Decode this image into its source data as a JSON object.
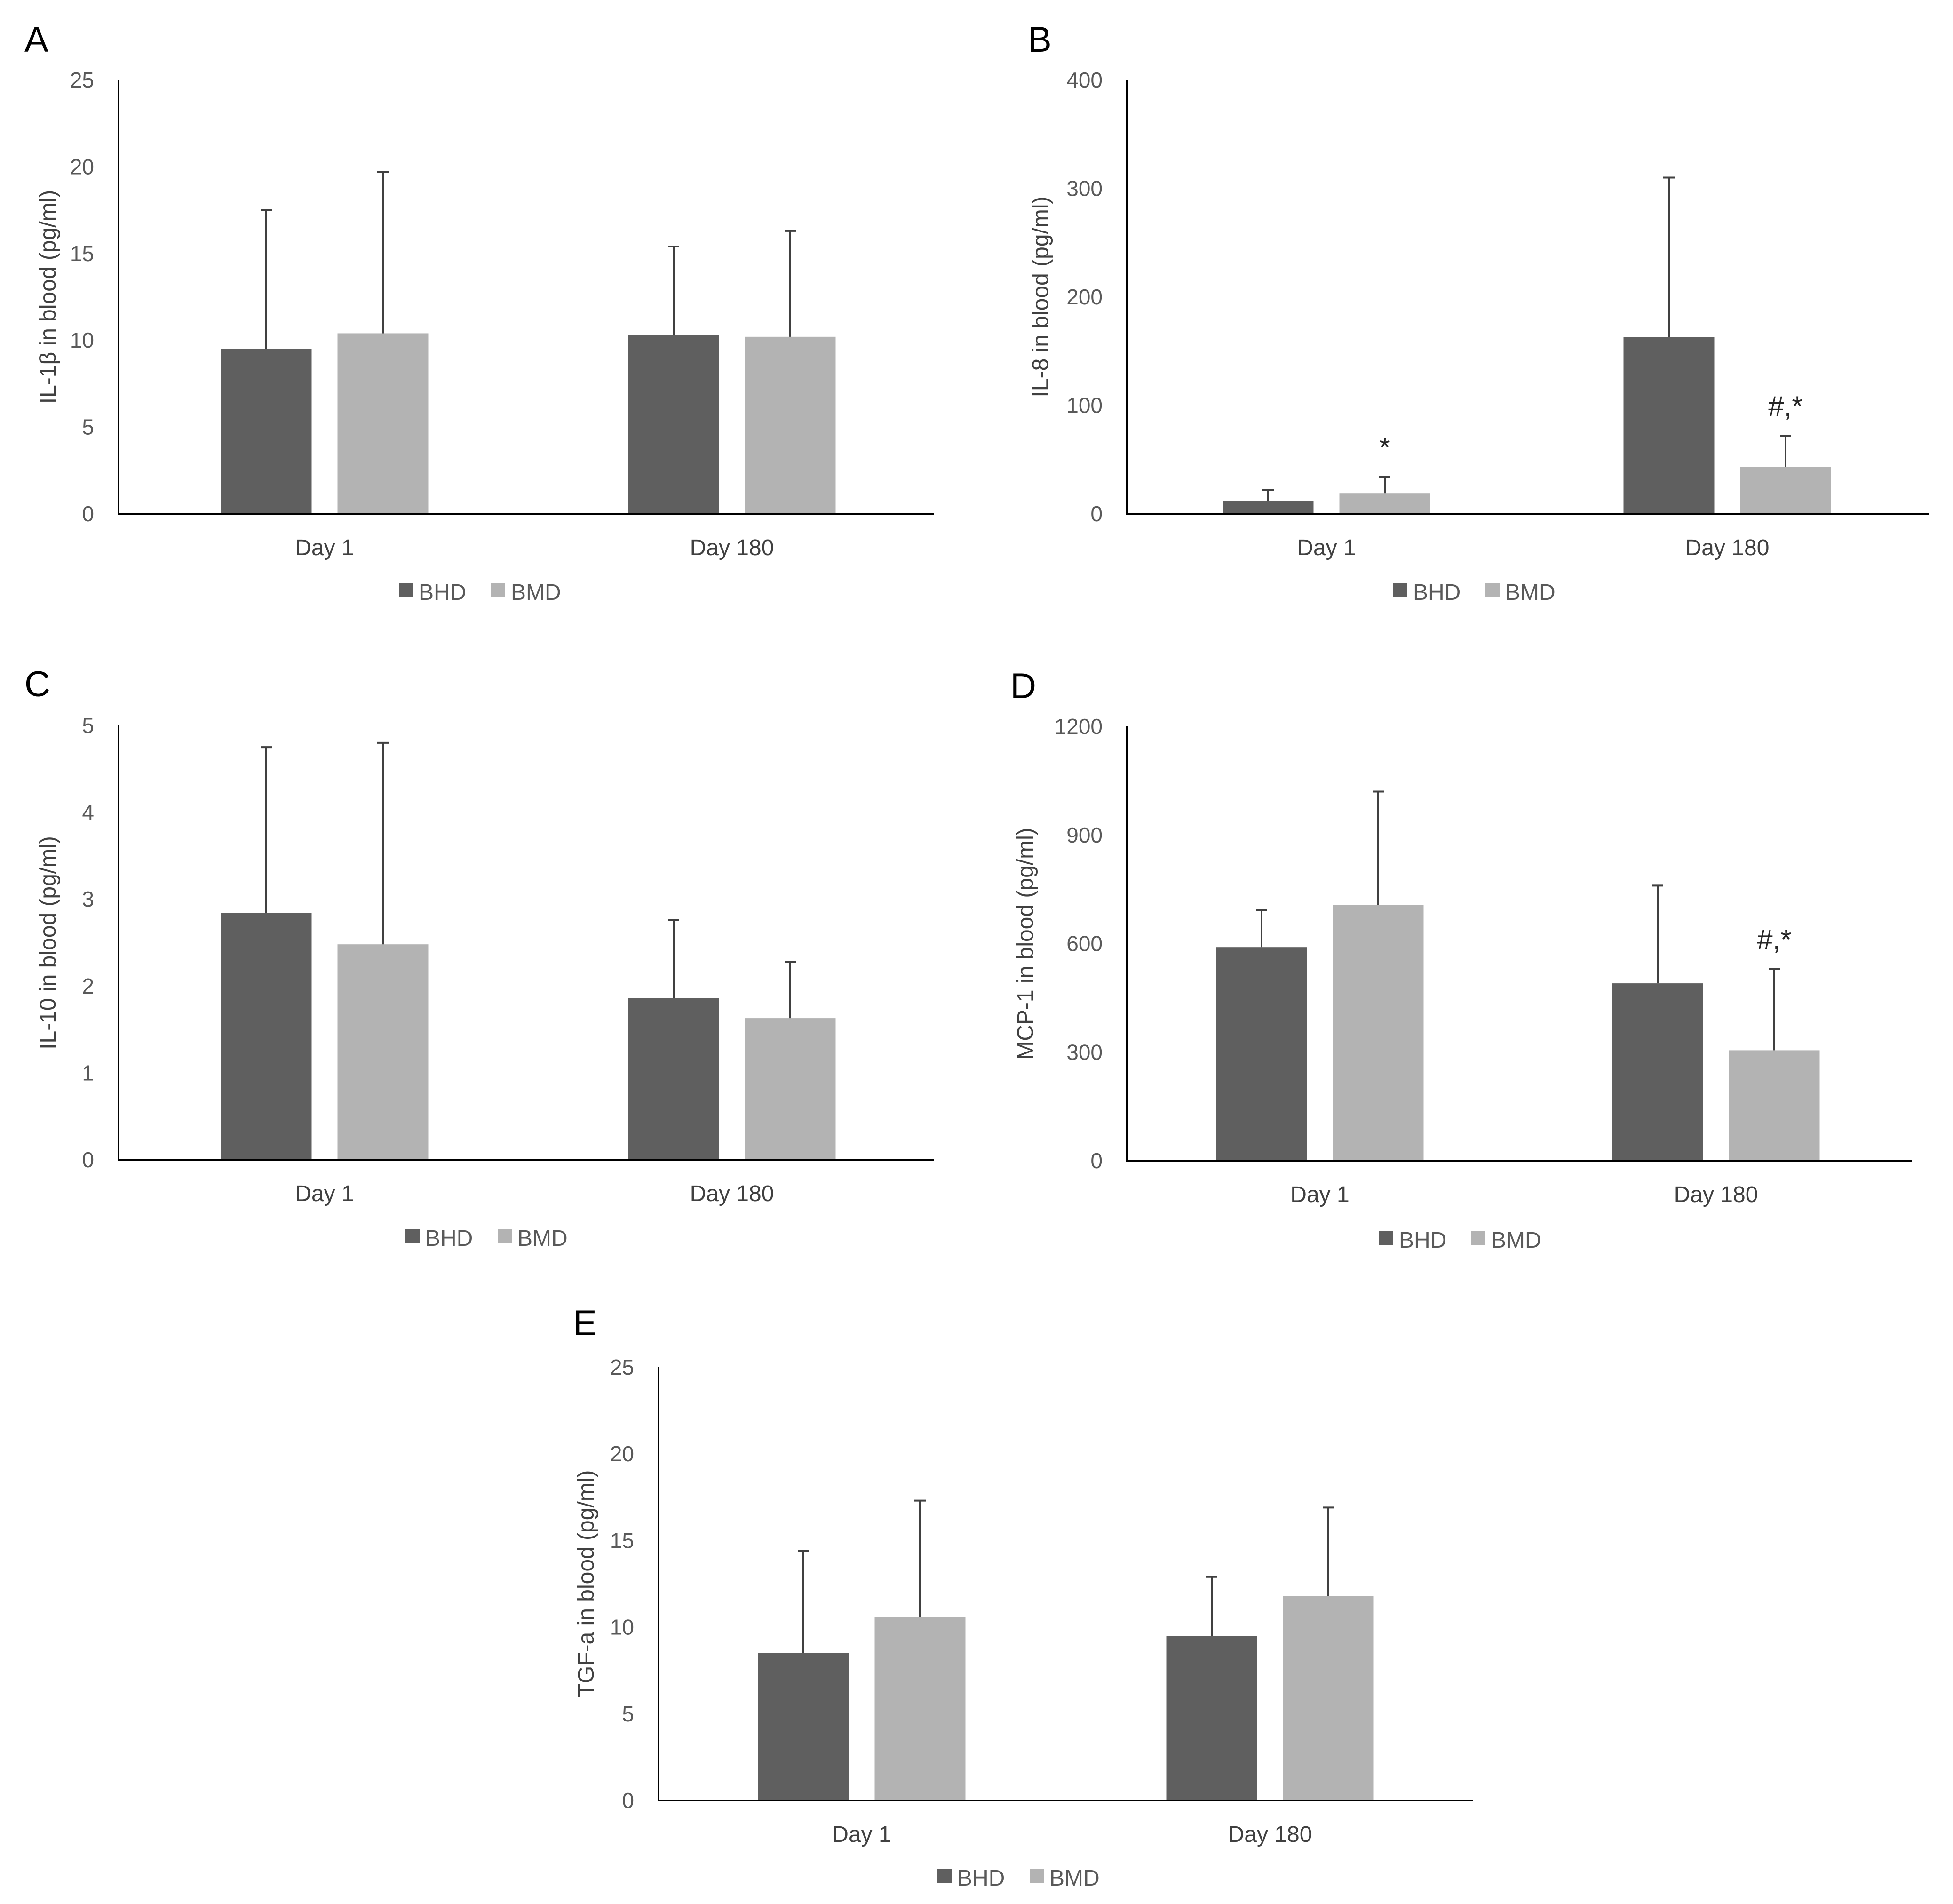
{
  "colors": {
    "BHD": "#5f5f5f",
    "BMD": "#b3b3b3",
    "axis": "#000000",
    "error": "#404040"
  },
  "chart_data": [
    {
      "panel": "A",
      "type": "bar",
      "ylabel": "IL-1β in blood (pg/ml)",
      "categories": [
        "Day 1",
        "Day 180"
      ],
      "ylim": [
        0,
        25
      ],
      "yticks": [
        0,
        5,
        10,
        15,
        20,
        25
      ],
      "series": [
        {
          "name": "BHD",
          "values": [
            9.5,
            10.3
          ],
          "errors": [
            8.0,
            5.1
          ],
          "annotations": [
            "",
            ""
          ]
        },
        {
          "name": "BMD",
          "values": [
            10.4,
            10.2
          ],
          "errors": [
            9.3,
            6.1
          ],
          "annotations": [
            "",
            ""
          ]
        }
      ],
      "legend": [
        "BHD",
        "BMD"
      ]
    },
    {
      "panel": "B",
      "type": "bar",
      "ylabel": "IL-8 in blood (pg/ml)",
      "categories": [
        "Day 1",
        "Day 180"
      ],
      "ylim": [
        0,
        400
      ],
      "yticks": [
        0,
        100,
        200,
        300,
        400
      ],
      "series": [
        {
          "name": "BHD",
          "values": [
            12,
            163
          ],
          "errors": [
            10,
            147
          ],
          "annotations": [
            "",
            ""
          ]
        },
        {
          "name": "BMD",
          "values": [
            19,
            43
          ],
          "errors": [
            15,
            29
          ],
          "annotations": [
            "*",
            "#,*"
          ]
        }
      ],
      "legend": [
        "BHD",
        "BMD"
      ]
    },
    {
      "panel": "C",
      "type": "bar",
      "ylabel": "IL-10 in blood (pg/ml)",
      "categories": [
        "Day 1",
        "Day 180"
      ],
      "ylim": [
        0,
        5
      ],
      "yticks": [
        0,
        1,
        2,
        3,
        4,
        5
      ],
      "series": [
        {
          "name": "BHD",
          "values": [
            2.84,
            1.86
          ],
          "errors": [
            1.91,
            0.9
          ],
          "annotations": [
            "",
            ""
          ]
        },
        {
          "name": "BMD",
          "values": [
            2.48,
            1.63
          ],
          "errors": [
            2.32,
            0.65
          ],
          "annotations": [
            "",
            ""
          ]
        }
      ],
      "legend": [
        "BHD",
        "BMD"
      ]
    },
    {
      "panel": "D",
      "type": "bar",
      "ylabel": "MCP-1 in blood (pg/ml)",
      "categories": [
        "Day 1",
        "Day 180"
      ],
      "ylim": [
        0,
        1200
      ],
      "yticks": [
        0,
        300,
        600,
        900,
        1200
      ],
      "series": [
        {
          "name": "BHD",
          "values": [
            590,
            490
          ],
          "errors": [
            103,
            270
          ],
          "annotations": [
            "",
            ""
          ]
        },
        {
          "name": "BMD",
          "values": [
            707,
            305
          ],
          "errors": [
            313,
            225
          ],
          "annotations": [
            "",
            "#,*"
          ]
        }
      ],
      "legend": [
        "BHD",
        "BMD"
      ]
    },
    {
      "panel": "E",
      "type": "bar",
      "ylabel": "TGF-a in blood (pg/ml)",
      "categories": [
        "Day 1",
        "Day 180"
      ],
      "ylim": [
        0,
        25
      ],
      "yticks": [
        0,
        5,
        10,
        15,
        20,
        25
      ],
      "series": [
        {
          "name": "BHD",
          "values": [
            8.5,
            9.5
          ],
          "errors": [
            5.9,
            3.4
          ],
          "annotations": [
            "",
            ""
          ]
        },
        {
          "name": "BMD",
          "values": [
            10.6,
            11.8
          ],
          "errors": [
            6.7,
            5.1
          ],
          "annotations": [
            "",
            ""
          ]
        }
      ],
      "legend": [
        "BHD",
        "BMD"
      ]
    }
  ]
}
